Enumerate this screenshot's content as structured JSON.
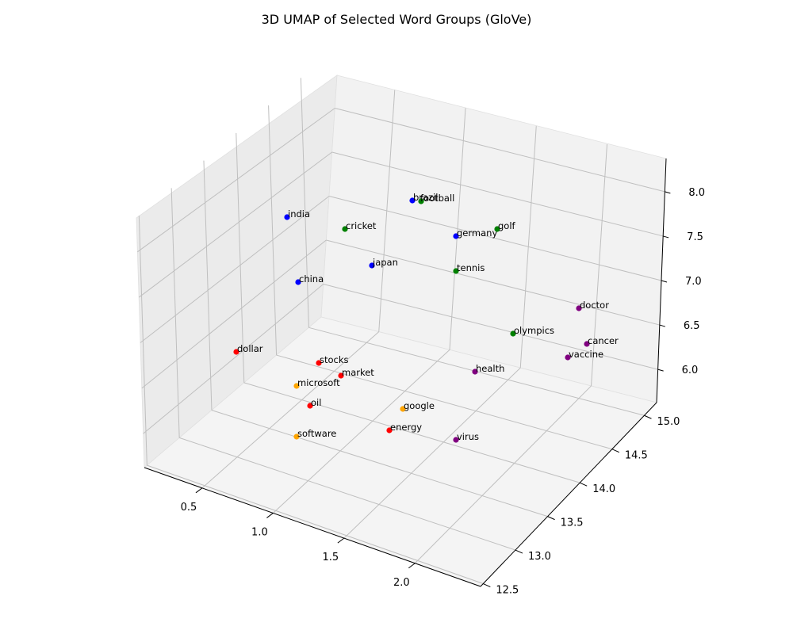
{
  "chart_data": {
    "type": "scatter",
    "subtype": "3d-scatter",
    "title": "3D UMAP of Selected Word Groups (GloVe)",
    "xlabel": "",
    "ylabel": "",
    "zlabel": "",
    "x_ticks": [
      "0.5",
      "1.0",
      "1.5",
      "2.0"
    ],
    "y_ticks": [
      "12.5",
      "13.0",
      "13.5",
      "14.0",
      "14.5",
      "15.0"
    ],
    "z_ticks": [
      "6.0",
      "6.5",
      "7.0",
      "7.5",
      "8.0"
    ],
    "grid": true,
    "legend": "none",
    "groups": [
      {
        "color": "#0000ff",
        "points": [
          {
            "label": "brazil"
          },
          {
            "label": "india"
          },
          {
            "label": "germany"
          },
          {
            "label": "japan"
          },
          {
            "label": "china"
          }
        ]
      },
      {
        "color": "#008000",
        "points": [
          {
            "label": "football"
          },
          {
            "label": "cricket"
          },
          {
            "label": "golf"
          },
          {
            "label": "tennis"
          },
          {
            "label": "olympics"
          }
        ]
      },
      {
        "color": "#800080",
        "points": [
          {
            "label": "doctor"
          },
          {
            "label": "cancer"
          },
          {
            "label": "vaccine"
          },
          {
            "label": "health"
          },
          {
            "label": "virus"
          }
        ]
      },
      {
        "color": "#ff0000",
        "points": [
          {
            "label": "dollar"
          },
          {
            "label": "stocks"
          },
          {
            "label": "market"
          },
          {
            "label": "oil"
          },
          {
            "label": "energy"
          }
        ]
      },
      {
        "color": "#ffa500",
        "points": [
          {
            "label": "microsoft"
          },
          {
            "label": "google"
          },
          {
            "label": "software"
          }
        ]
      }
    ]
  }
}
